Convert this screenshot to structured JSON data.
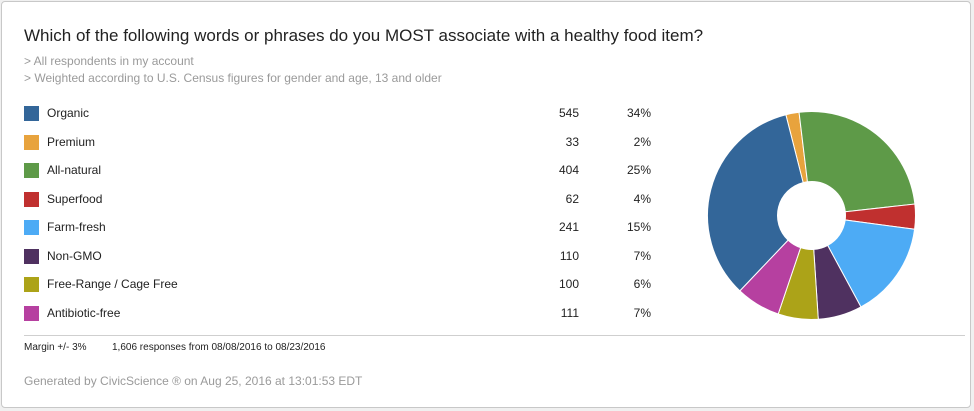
{
  "question": "Which of the following words or phrases do you MOST associate with a healthy food item?",
  "notes": [
    "> All respondents in my account",
    "> Weighted according to U.S. Census figures for gender and age, 13 and older"
  ],
  "chart_data": {
    "type": "pie",
    "categories": [
      "Organic",
      "Premium",
      "All-natural",
      "Superfood",
      "Farm-fresh",
      "Non-GMO",
      "Free-Range / Cage Free",
      "Antibiotic-free"
    ],
    "counts": [
      "545",
      "33",
      "404",
      "62",
      "241",
      "110",
      "100",
      "111"
    ],
    "percents": [
      "34%",
      "2%",
      "25%",
      "4%",
      "15%",
      "7%",
      "6%",
      "7%"
    ],
    "values": [
      545,
      33,
      404,
      62,
      241,
      110,
      100,
      111
    ],
    "colors": [
      "#336699",
      "#e8a33d",
      "#5e9a48",
      "#c0302f",
      "#4dabf5",
      "#4f3160",
      "#aca318",
      "#b640a0"
    ],
    "donut": true
  },
  "footer": {
    "margin": "Margin +/- 3%",
    "responses": "1,606 responses from 08/08/2016 to 08/23/2016",
    "generated": "Generated by CivicScience ® on Aug 25, 2016 at 13:01:53 EDT"
  }
}
